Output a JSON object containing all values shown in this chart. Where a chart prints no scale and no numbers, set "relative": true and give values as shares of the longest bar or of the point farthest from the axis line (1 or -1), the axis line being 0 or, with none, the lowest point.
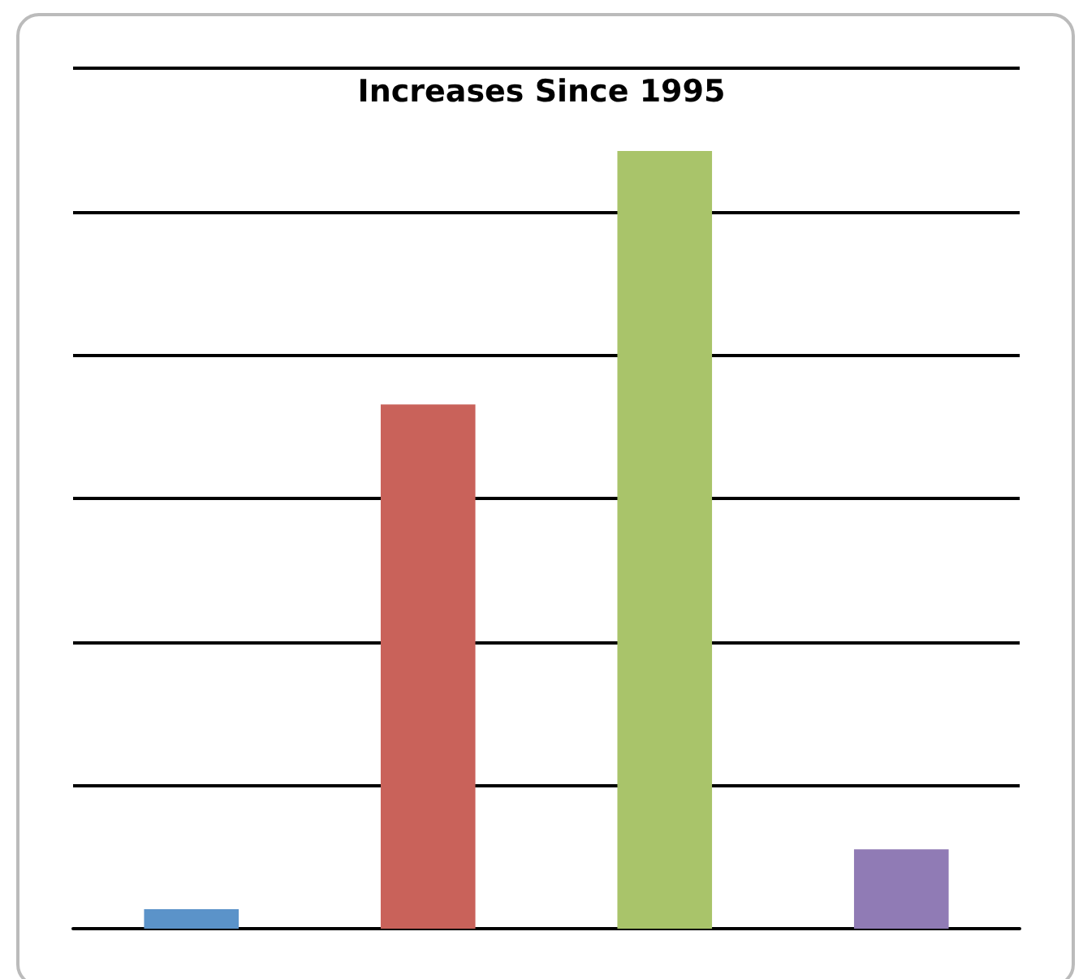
{
  "chart_data": {
    "type": "bar",
    "title": "Increases Since 1995",
    "relative": true,
    "grid": "y",
    "categories": [
      null,
      null,
      null,
      null
    ],
    "values": [
      0.025,
      0.674,
      1,
      0.102
    ],
    "colors": [
      "#5b93c9",
      "#c9625a",
      "#a9c46a",
      "#907bb5"
    ]
  }
}
